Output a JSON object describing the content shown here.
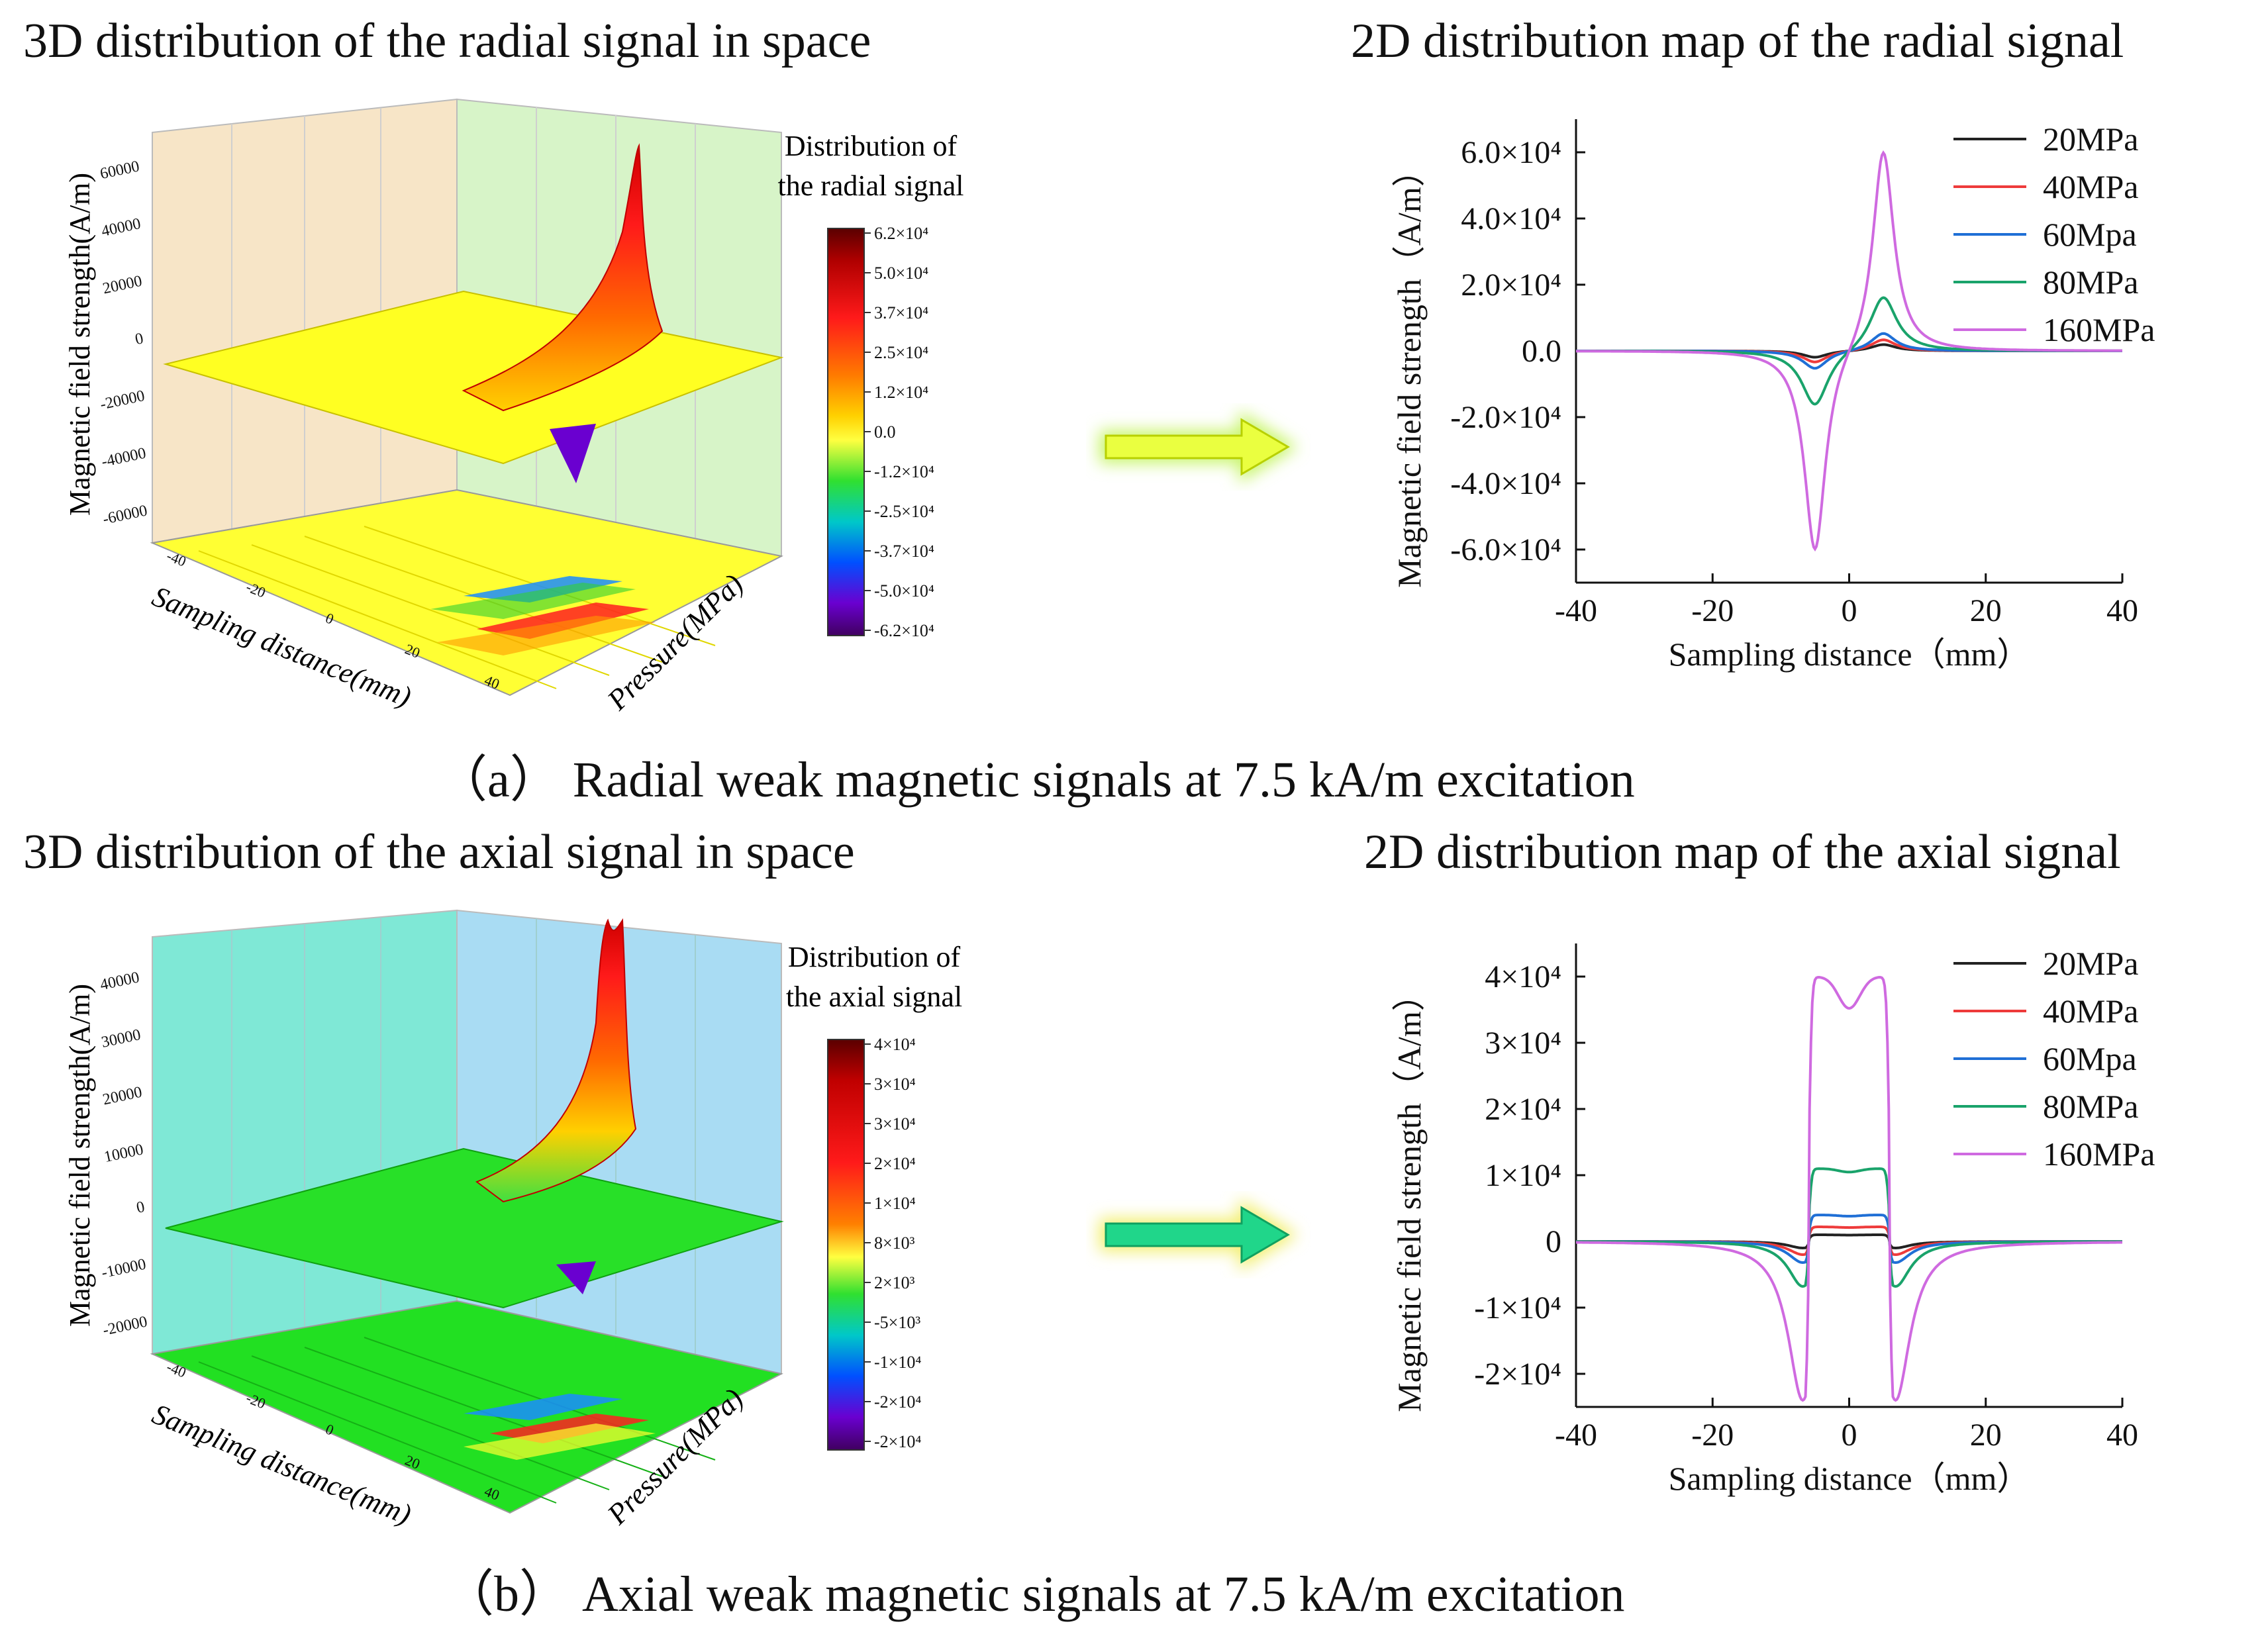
{
  "figure": {
    "a": {
      "title_3d": "3D distribution of the radial signal in space",
      "title_2d": "2D distribution map of the radial signal",
      "caption": "（a） Radial weak magnetic signals at 7.5 kA/m excitation"
    },
    "b": {
      "title_3d": "3D distribution of the axial signal in space",
      "title_2d": "2D distribution map of the axial signal",
      "caption": "（b） Axial weak magnetic signals at 7.5 kA/m excitation"
    }
  },
  "colors": {
    "20MPa": "#222222",
    "40MPa": "#ee3b3b",
    "60Mpa": "#1f6fd6",
    "80MPa": "#1aa36b",
    "160MPa": "#cf6ae0"
  },
  "chart_data": [
    {
      "type": "surface3d",
      "panel": "a-3d",
      "zlabel": "Magnetic field strength(A/m)",
      "xlabel": "Sampling distance(mm)",
      "ylabel": "Pressure(MPa)",
      "z_ticks": [
        "60000",
        "40000",
        "20000",
        "0",
        "-20000",
        "-40000",
        "-60000"
      ],
      "x_ticks": [
        "-40",
        "-20",
        "0",
        "20",
        "40"
      ],
      "colorbar": {
        "title_line1": "Distribution of",
        "title_line2": "the radial signal",
        "labels": [
          "6.2×10⁴",
          "5.0×10⁴",
          "3.7×10⁴",
          "2.5×10⁴",
          "1.2×10⁴",
          "0.0",
          "-1.2×10⁴",
          "-2.5×10⁴",
          "-3.7×10⁴",
          "-5.0×10⁴",
          "-6.2×10⁴"
        ]
      }
    },
    {
      "type": "line",
      "panel": "a-2d",
      "xlabel": "Sampling distance（mm）",
      "ylabel": "Magnetic field strength（A/m）",
      "xlim": [
        -40,
        40
      ],
      "ylim": [
        -70000,
        70000
      ],
      "x_ticks": [
        -40,
        -20,
        0,
        20,
        40
      ],
      "y_ticks": [
        -60000,
        -40000,
        -20000,
        0,
        20000,
        40000,
        60000
      ],
      "y_tick_labels": [
        "-6.0×10⁴",
        "-4.0×10⁴",
        "-2.0×10⁴",
        "0.0",
        "2.0×10⁴",
        "4.0×10⁴",
        "6.0×10⁴"
      ],
      "legend_position": "top-right",
      "shape": "dipole",
      "series": [
        {
          "name": "20MPa",
          "peak": 2000,
          "width": 2.2
        },
        {
          "name": "40MPa",
          "peak": 3500,
          "width": 2.2
        },
        {
          "name": "60Mpa",
          "peak": 5500,
          "width": 2.2
        },
        {
          "name": "80MPa",
          "peak": 17000,
          "width": 2.4
        },
        {
          "name": "160MPa",
          "peak": 62000,
          "width": 1.9
        }
      ]
    },
    {
      "type": "surface3d",
      "panel": "b-3d",
      "zlabel": "Magnetic field strength(A/m)",
      "xlabel": "Sampling distance(mm)",
      "ylabel": "Pressure(MPa)",
      "z_ticks": [
        "40000",
        "30000",
        "20000",
        "10000",
        "0",
        "-10000",
        "-20000"
      ],
      "x_ticks": [
        "-40",
        "-20",
        "0",
        "20",
        "40"
      ],
      "colorbar": {
        "title_line1": "Distribution of",
        "title_line2": "the axial signal",
        "labels": [
          "4×10⁴",
          "3×10⁴",
          "3×10⁴",
          "2×10⁴",
          "1×10⁴",
          "8×10³",
          "2×10³",
          "-5×10³",
          "-1×10⁴",
          "-2×10⁴",
          "-2×10⁴"
        ]
      }
    },
    {
      "type": "line",
      "panel": "b-2d",
      "xlabel": "Sampling distance（mm）",
      "ylabel": "Magnetic field strength（A/m）",
      "xlim": [
        -40,
        40
      ],
      "ylim": [
        -25000,
        45000
      ],
      "x_ticks": [
        -40,
        -20,
        0,
        20,
        40
      ],
      "y_ticks": [
        -20000,
        -10000,
        0,
        10000,
        20000,
        30000,
        40000
      ],
      "y_tick_labels": [
        "-2×10⁴",
        "-1×10⁴",
        "0",
        "1×10⁴",
        "2×10⁴",
        "3×10⁴",
        "4×10⁴"
      ],
      "legend_position": "top-right",
      "shape": "plateau",
      "series": [
        {
          "name": "20MPa",
          "plateau": 1000,
          "dip": -1000
        },
        {
          "name": "40MPa",
          "plateau": 2200,
          "dip": -2000
        },
        {
          "name": "60Mpa",
          "plateau": 4000,
          "dip": -3200
        },
        {
          "name": "80MPa",
          "plateau": 11000,
          "dip": -6800
        },
        {
          "name": "160MPa",
          "plateau": 40000,
          "dip": -24000
        }
      ]
    }
  ]
}
